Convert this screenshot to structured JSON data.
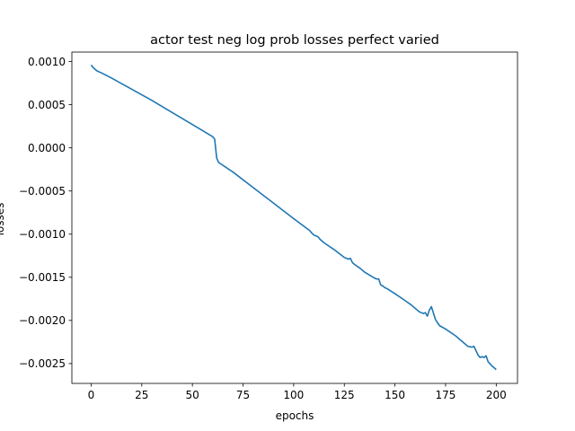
{
  "chart_data": {
    "type": "line",
    "title": "actor test neg log prob losses perfect varied",
    "xlabel": "epochs",
    "ylabel": "losses",
    "xlim": [
      -9.5,
      210.5
    ],
    "ylim": [
      -0.00273,
      0.00111
    ],
    "xticks": [
      0,
      25,
      50,
      75,
      100,
      125,
      150,
      175,
      200
    ],
    "xtick_labels": [
      "0",
      "25",
      "50",
      "75",
      "100",
      "125",
      "150",
      "175",
      "200"
    ],
    "yticks": [
      0.001,
      0.0005,
      0.0,
      -0.0005,
      -0.001,
      -0.0015,
      -0.002,
      -0.0025
    ],
    "ytick_labels": [
      "0.0010",
      "0.0005",
      "0.0000",
      "−0.0005",
      "−0.0010",
      "−0.0015",
      "−0.0020",
      "−0.0025"
    ],
    "grid": false,
    "legend": "none",
    "series": [
      {
        "color": "#1f77b4",
        "x": [
          0,
          1,
          2,
          3,
          5,
          10,
          20,
          30,
          40,
          50,
          60,
          61,
          62,
          63,
          70,
          80,
          90,
          100,
          108,
          109,
          110,
          111,
          112,
          113,
          115,
          120,
          125,
          126,
          127,
          128,
          129,
          130,
          133,
          135,
          140,
          141,
          142,
          143,
          144,
          145,
          146,
          150,
          155,
          158,
          160,
          161,
          162,
          163,
          164,
          165,
          166,
          167,
          168,
          170,
          172,
          175,
          180,
          184,
          186,
          188,
          189,
          190,
          191,
          192,
          193,
          194,
          195,
          196,
          198,
          200
        ],
        "values": [
          0.00096,
          0.00093,
          0.00091,
          0.00089,
          0.00087,
          0.00081,
          0.00068,
          0.00055,
          0.00041,
          0.00027,
          0.00013,
          0.0001,
          -0.00012,
          -0.00017,
          -0.00028,
          -0.00046,
          -0.00064,
          -0.00082,
          -0.00096,
          -0.00099,
          -0.00101,
          -0.00102,
          -0.00103,
          -0.00106,
          -0.0011,
          -0.00118,
          -0.00127,
          -0.00128,
          -0.00129,
          -0.00128,
          -0.00133,
          -0.00135,
          -0.0014,
          -0.00144,
          -0.00151,
          -0.00152,
          -0.00152,
          -0.00159,
          -0.0016,
          -0.00162,
          -0.00163,
          -0.00169,
          -0.00177,
          -0.00182,
          -0.00186,
          -0.00188,
          -0.0019,
          -0.00191,
          -0.00192,
          -0.00191,
          -0.00195,
          -0.00188,
          -0.00184,
          -0.00199,
          -0.00206,
          -0.0021,
          -0.00218,
          -0.00226,
          -0.0023,
          -0.00231,
          -0.0023,
          -0.00235,
          -0.0024,
          -0.00243,
          -0.00242,
          -0.00243,
          -0.00241,
          -0.00248,
          -0.00253,
          -0.00257
        ]
      }
    ]
  }
}
